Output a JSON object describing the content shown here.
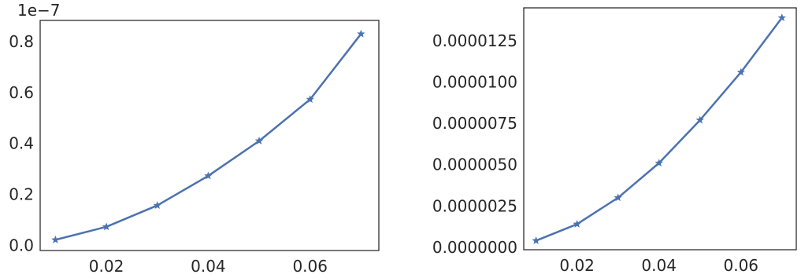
{
  "chart_data": [
    {
      "type": "line",
      "title": "",
      "xlabel": "",
      "ylabel": "",
      "offset_label": "1e−7",
      "x": [
        0.01,
        0.02,
        0.03,
        0.04,
        0.05,
        0.06,
        0.07
      ],
      "series": [
        {
          "values": [
            0.022,
            0.073,
            0.157,
            0.273,
            0.41,
            0.573,
            0.83
          ],
          "color": "#4c72b0",
          "marker": "star"
        }
      ],
      "xlim": [
        0.007,
        0.0735
      ],
      "ylim": [
        -0.02,
        0.883
      ],
      "xticks": [
        0.02,
        0.04,
        0.06
      ],
      "xtick_labels": [
        "0.02",
        "0.04",
        "0.06"
      ],
      "yticks": [
        0.0,
        0.2,
        0.4,
        0.6,
        0.8
      ],
      "ytick_labels": [
        "0.0",
        "0.2",
        "0.4",
        "0.6",
        "0.8"
      ],
      "grid": false,
      "legend": "none"
    },
    {
      "type": "line",
      "title": "",
      "xlabel": "",
      "ylabel": "",
      "offset_label": "",
      "x": [
        0.01,
        0.02,
        0.03,
        0.04,
        0.05,
        0.06,
        0.07
      ],
      "series": [
        {
          "values": [
            4e-07,
            1.4e-06,
            3e-06,
            5.1e-06,
            7.7e-06,
            1.06e-05,
            1.39e-05
          ],
          "color": "#4c72b0",
          "marker": "star"
        }
      ],
      "xlim": [
        0.007,
        0.0735
      ],
      "ylim": [
        -1.5e-07,
        1.45e-05
      ],
      "xticks": [
        0.02,
        0.04,
        0.06
      ],
      "xtick_labels": [
        "0.02",
        "0.04",
        "0.06"
      ],
      "yticks": [
        0.0,
        2.5e-06,
        5e-06,
        7.5e-06,
        1e-05,
        1.25e-05
      ],
      "ytick_labels": [
        "0.0000000",
        "0.0000025",
        "0.0000050",
        "0.0000075",
        "0.0000100",
        "0.0000125"
      ],
      "grid": false,
      "legend": "none"
    }
  ]
}
